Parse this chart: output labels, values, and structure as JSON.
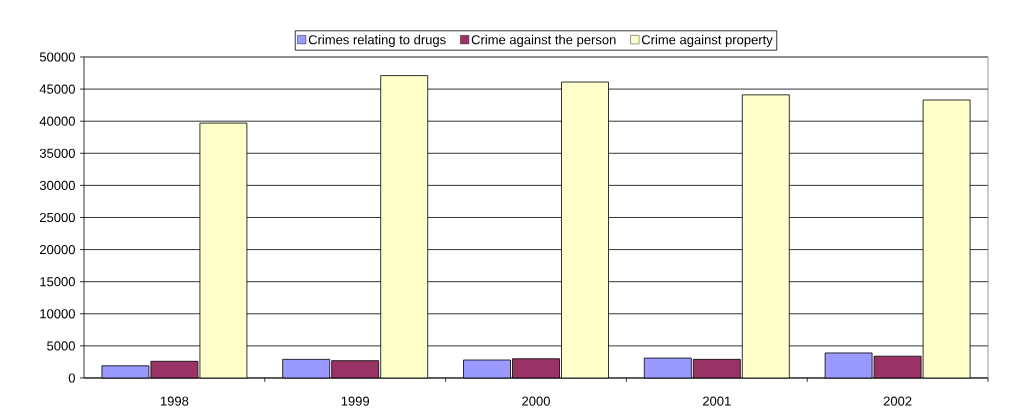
{
  "chart_data": {
    "type": "bar",
    "categories": [
      "1998",
      "1999",
      "2000",
      "2001",
      "2002"
    ],
    "series": [
      {
        "name": "Crimes relating to drugs",
        "color": "#9999ff",
        "values": [
          1900,
          2900,
          2800,
          3100,
          3900
        ]
      },
      {
        "name": "Crime against the person",
        "color": "#993366",
        "values": [
          2600,
          2700,
          3000,
          2900,
          3400
        ]
      },
      {
        "name": "Crime against property",
        "color": "#ffffcc",
        "values": [
          39700,
          47100,
          46100,
          44100,
          43300
        ]
      }
    ],
    "ylim": [
      0,
      50000
    ],
    "yticks": [
      0,
      5000,
      10000,
      15000,
      20000,
      25000,
      30000,
      35000,
      40000,
      45000,
      50000
    ],
    "grid": "y",
    "legend": "top"
  }
}
